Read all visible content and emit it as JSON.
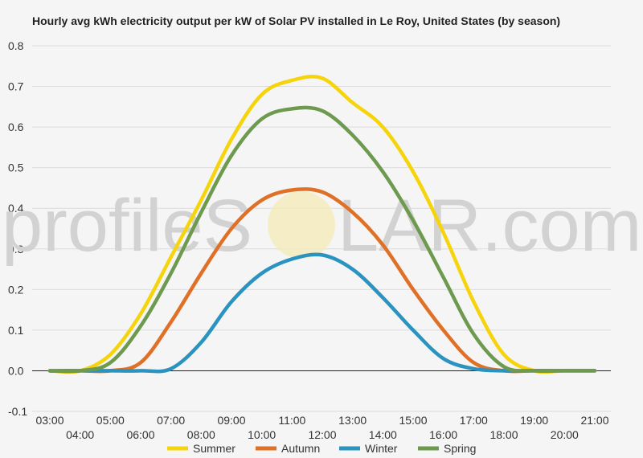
{
  "chart_data": {
    "type": "line",
    "title": "Hourly avg kWh electricity output per kW of Solar PV installed in Le Roy, United States (by season)",
    "xlabel": "",
    "ylabel": "",
    "ylim": [
      -0.1,
      0.8
    ],
    "yticks": [
      "-0.1",
      "0.0",
      "0.1",
      "0.2",
      "0.3",
      "0.4",
      "0.5",
      "0.6",
      "0.7",
      "0.8"
    ],
    "x": [
      "03:00",
      "04:00",
      "05:00",
      "06:00",
      "07:00",
      "08:00",
      "09:00",
      "10:00",
      "11:00",
      "12:00",
      "13:00",
      "14:00",
      "15:00",
      "16:00",
      "17:00",
      "18:00",
      "19:00",
      "20:00",
      "21:00"
    ],
    "grid": true,
    "legend": "bottom",
    "series": [
      {
        "name": "Summer",
        "color": "#f5d40c",
        "values": [
          0.0,
          0.0,
          0.04,
          0.14,
          0.28,
          0.42,
          0.57,
          0.68,
          0.715,
          0.72,
          0.66,
          0.6,
          0.49,
          0.34,
          0.17,
          0.04,
          0.0,
          0.0,
          0.0
        ]
      },
      {
        "name": "Autumn",
        "color": "#e07025",
        "values": [
          0.0,
          0.0,
          0.0,
          0.02,
          0.12,
          0.24,
          0.35,
          0.42,
          0.445,
          0.44,
          0.39,
          0.31,
          0.2,
          0.1,
          0.02,
          0.0,
          0.0,
          0.0,
          0.0
        ]
      },
      {
        "name": "Winter",
        "color": "#2b93bf",
        "values": [
          0.0,
          0.0,
          0.0,
          0.0,
          0.005,
          0.07,
          0.17,
          0.24,
          0.275,
          0.285,
          0.25,
          0.18,
          0.1,
          0.03,
          0.005,
          0.0,
          0.0,
          0.0,
          0.0
        ]
      },
      {
        "name": "Spring",
        "color": "#6e9a50",
        "values": [
          0.0,
          0.0,
          0.02,
          0.11,
          0.24,
          0.39,
          0.53,
          0.62,
          0.645,
          0.64,
          0.58,
          0.49,
          0.37,
          0.23,
          0.09,
          0.01,
          0.0,
          0.0,
          0.0
        ]
      }
    ]
  },
  "watermark": {
    "text_left": "profileS",
    "text_right": "LAR.com",
    "sun_color": "#f5eab0"
  }
}
